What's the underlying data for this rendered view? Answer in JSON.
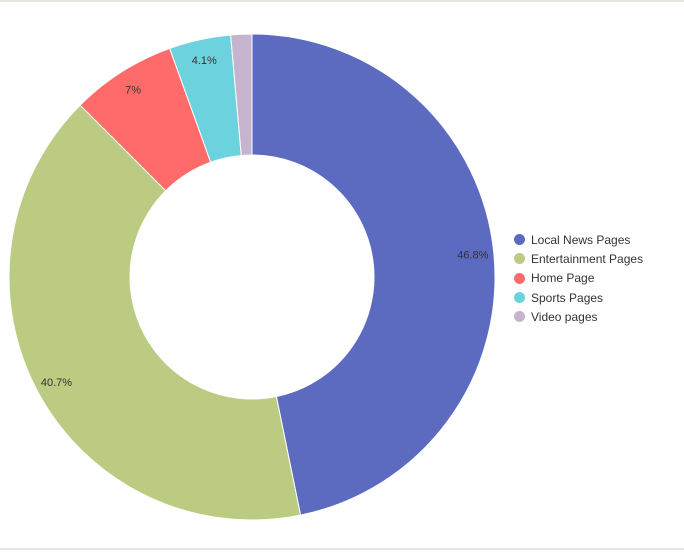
{
  "chart_data": {
    "type": "pie",
    "donut": true,
    "categories": [
      "Local News Pages",
      "Entertainment Pages",
      "Home Page",
      "Sports Pages",
      "Video pages"
    ],
    "values": [
      46.8,
      40.7,
      7,
      4.1,
      1.4
    ],
    "data_labels": [
      "46.8%",
      "40.7%",
      "7%",
      "4.1%",
      ""
    ],
    "colors": [
      "#5c6bc0",
      "#bccb82",
      "#ff6b6b",
      "#6cd2dd",
      "#c6b3cd"
    ],
    "legend_position": "right"
  }
}
